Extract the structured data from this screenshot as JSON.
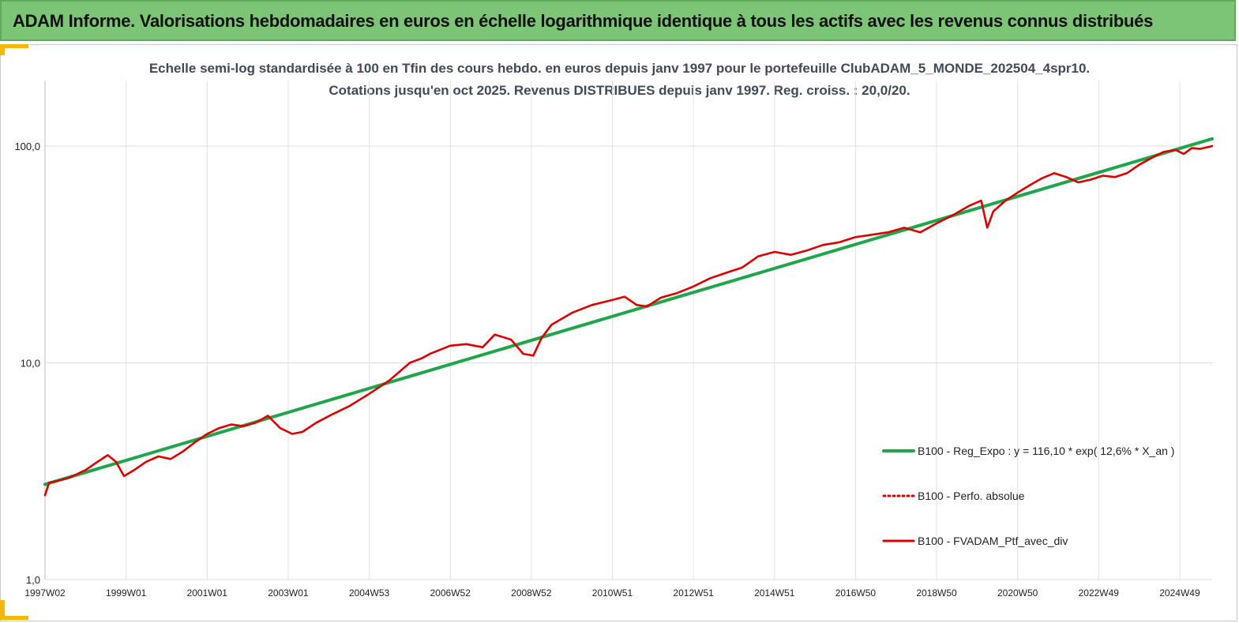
{
  "header": {
    "banner_title": "ADAM Informe. Valorisations hebdomadaires en euros en échelle logarithmique identique à tous les actifs avec les revenus connus distribués"
  },
  "chart_data": {
    "type": "line",
    "title_line1": "Echelle semi-log standardisée à 100 en Tfin des cours hebdo.  en euros depuis janv 1997 pour le portefeuille ClubADAM_5_MONDE_202504_4spr10.",
    "title_line2": "Cotations jusqu'en oct 2025. Revenus DISTRIBUES depuis janv 1997. Reg. croiss. : 20,0/20.",
    "y_scale": "log",
    "ylim": [
      1,
      200
    ],
    "y_ticks": [
      {
        "value": 1,
        "label": "1,0"
      },
      {
        "value": 10,
        "label": "10,0"
      },
      {
        "value": 100,
        "label": "100,0"
      }
    ],
    "x_ticks": [
      {
        "value": 1997.0,
        "label": "1997W02"
      },
      {
        "value": 1999.0,
        "label": "1999W01"
      },
      {
        "value": 2001.0,
        "label": "2001W01"
      },
      {
        "value": 2003.0,
        "label": "2003W01"
      },
      {
        "value": 2005.0,
        "label": "2004W53"
      },
      {
        "value": 2007.0,
        "label": "2006W52"
      },
      {
        "value": 2009.0,
        "label": "2008W52"
      },
      {
        "value": 2011.0,
        "label": "2010W51"
      },
      {
        "value": 2013.0,
        "label": "2012W51"
      },
      {
        "value": 2015.0,
        "label": "2014W51"
      },
      {
        "value": 2017.0,
        "label": "2016W50"
      },
      {
        "value": 2019.0,
        "label": "2018W50"
      },
      {
        "value": 2021.0,
        "label": "2020W50"
      },
      {
        "value": 2023.0,
        "label": "2022W49"
      },
      {
        "value": 2025.0,
        "label": "2024W49"
      }
    ],
    "xlim": [
      1997.0,
      2025.8
    ],
    "grid": {
      "vertical": true,
      "horizontal": true
    },
    "legend_placement": "right",
    "series": [
      {
        "name": "B100 - Reg_Expo : y = 116,10 * exp( 12,6% *  X_an )",
        "style": "solid-thick",
        "color": "#1fa64a",
        "x": [
          1997.0,
          2025.8
        ],
        "y": [
          2.75,
          108
        ]
      },
      {
        "name": "B100 - Perfo. absolue",
        "style": "dotted",
        "color": "#e00000",
        "x": [],
        "y": []
      },
      {
        "name": "B100 - FVADAM_Ptf_avec_div",
        "style": "solid",
        "color": "#e00000",
        "x": [
          1997.0,
          1997.1,
          1997.3,
          1997.6,
          1998.0,
          1998.3,
          1998.55,
          1998.75,
          1998.95,
          1999.2,
          1999.5,
          1999.8,
          2000.1,
          2000.4,
          2000.7,
          2001.0,
          2001.3,
          2001.6,
          2001.9,
          2002.2,
          2002.5,
          2002.8,
          2003.1,
          2003.35,
          2003.7,
          2004.1,
          2004.5,
          2005.0,
          2005.5,
          2006.0,
          2006.3,
          2006.5,
          2007.0,
          2007.4,
          2007.8,
          2008.1,
          2008.5,
          2008.8,
          2009.05,
          2009.25,
          2009.5,
          2010.0,
          2010.5,
          2011.0,
          2011.3,
          2011.6,
          2011.85,
          2012.2,
          2012.6,
          2013.0,
          2013.4,
          2013.8,
          2014.2,
          2014.6,
          2015.0,
          2015.4,
          2015.8,
          2016.2,
          2016.6,
          2017.0,
          2017.4,
          2017.8,
          2018.2,
          2018.6,
          2019.0,
          2019.4,
          2019.8,
          2020.1,
          2020.25,
          2020.4,
          2020.7,
          2021.0,
          2021.3,
          2021.6,
          2021.9,
          2022.2,
          2022.5,
          2022.8,
          2023.1,
          2023.4,
          2023.7,
          2024.0,
          2024.3,
          2024.6,
          2024.9,
          2025.1,
          2025.3,
          2025.5,
          2025.8
        ],
        "y": [
          2.45,
          2.8,
          2.85,
          2.95,
          3.2,
          3.5,
          3.75,
          3.5,
          3.0,
          3.2,
          3.5,
          3.7,
          3.6,
          3.9,
          4.3,
          4.7,
          5.0,
          5.2,
          5.1,
          5.3,
          5.7,
          5.0,
          4.7,
          4.8,
          5.3,
          5.8,
          6.3,
          7.2,
          8.3,
          10.0,
          10.5,
          11.0,
          12.0,
          12.2,
          11.8,
          13.5,
          12.8,
          11.0,
          10.8,
          13.0,
          15.0,
          17.0,
          18.5,
          19.5,
          20.2,
          18.5,
          18.2,
          20.0,
          21.0,
          22.5,
          24.5,
          26.0,
          27.5,
          31.0,
          32.5,
          31.5,
          33.0,
          35.0,
          36.0,
          38.0,
          39.0,
          40.0,
          42.0,
          40.0,
          44.0,
          48.0,
          53.0,
          56.0,
          42.0,
          50.0,
          56.0,
          61.0,
          66.0,
          71.0,
          75.0,
          72.0,
          68.0,
          70.0,
          73.0,
          72.0,
          75.0,
          82.0,
          88.0,
          94.0,
          96.0,
          92.0,
          98.0,
          97.0,
          100.0
        ]
      }
    ]
  }
}
